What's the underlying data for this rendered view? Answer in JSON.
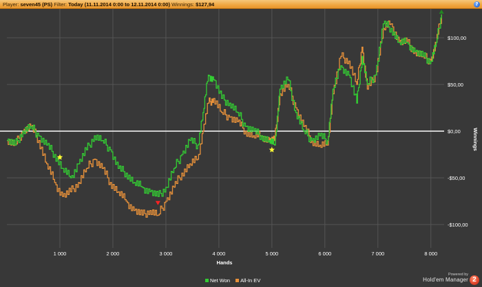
{
  "header": {
    "player_label": "Player:",
    "player_value": "seven45 (PS)",
    "filter_label": "Filter:",
    "filter_value": "Today (11.11.2014 0:00 to 12.11.2014 0:00)",
    "winnings_label": "Winnings:",
    "winnings_value": "$127,94",
    "help_label": "?"
  },
  "brand": {
    "powered_by": "Powered by",
    "name": "Hold'em Manager",
    "logo": "2"
  },
  "colors": {
    "net_won": "#33cc33",
    "all_in_ev": "#e8913a",
    "zero_line": "#ffffff",
    "grid": "#555555",
    "background": "#383838"
  },
  "chart_data": {
    "type": "line",
    "title": "",
    "xlabel": "Hands",
    "ylabel": "Winnings",
    "xlim": [
      0,
      8250
    ],
    "ylim": [
      -125,
      125
    ],
    "x_ticks": [
      1000,
      2000,
      3000,
      4000,
      5000,
      6000,
      7000,
      8000
    ],
    "x_tick_labels": [
      "1 000",
      "2 000",
      "3 000",
      "4 000",
      "5 000",
      "6 000",
      "7 000",
      "8 000"
    ],
    "y_ticks": [
      100,
      50,
      0,
      -50,
      -100
    ],
    "y_tick_labels": [
      "$100,00",
      "$50,00",
      "$0,00",
      "-$50,00",
      "-$100,00"
    ],
    "grid": true,
    "legend_position": "bottom-center",
    "series": [
      {
        "name": "Net Won",
        "x": [
          0,
          150,
          300,
          450,
          600,
          750,
          900,
          1050,
          1200,
          1350,
          1500,
          1650,
          1800,
          1950,
          2100,
          2250,
          2400,
          2550,
          2700,
          2850,
          3000,
          3150,
          3300,
          3450,
          3600,
          3700,
          3800,
          3900,
          4050,
          4200,
          4350,
          4500,
          4650,
          4800,
          4950,
          5050,
          5150,
          5300,
          5450,
          5600,
          5750,
          5900,
          6050,
          6150,
          6300,
          6450,
          6600,
          6700,
          6800,
          6950,
          7100,
          7250,
          7400,
          7550,
          7700,
          7850,
          8000,
          8100,
          8200
        ],
        "y": [
          -10,
          -15,
          0,
          5,
          -5,
          -15,
          -25,
          -40,
          -50,
          -35,
          -20,
          -5,
          -10,
          -20,
          -40,
          -45,
          -55,
          -60,
          -65,
          -70,
          -60,
          -40,
          -25,
          -10,
          -15,
          20,
          60,
          55,
          35,
          30,
          20,
          5,
          0,
          -5,
          -10,
          -15,
          45,
          55,
          20,
          0,
          -10,
          -5,
          -10,
          45,
          70,
          60,
          30,
          80,
          50,
          60,
          115,
          110,
          95,
          95,
          85,
          80,
          75,
          95,
          125
        ]
      },
      {
        "name": "All-In EV",
        "x": [
          0,
          150,
          300,
          450,
          600,
          750,
          900,
          1050,
          1200,
          1350,
          1500,
          1650,
          1800,
          1950,
          2100,
          2250,
          2400,
          2550,
          2700,
          2850,
          3000,
          3150,
          3300,
          3450,
          3600,
          3700,
          3800,
          3900,
          4050,
          4200,
          4350,
          4500,
          4650,
          4800,
          4950,
          5050,
          5150,
          5300,
          5450,
          5600,
          5750,
          5900,
          6050,
          6150,
          6300,
          6450,
          6600,
          6700,
          6800,
          6950,
          7100,
          7250,
          7400,
          7550,
          7700,
          7850,
          8000,
          8100,
          8200
        ],
        "y": [
          -10,
          -15,
          0,
          5,
          -10,
          -35,
          -55,
          -70,
          -65,
          -55,
          -40,
          -30,
          -40,
          -55,
          -65,
          -75,
          -85,
          -90,
          -85,
          -90,
          -75,
          -60,
          -45,
          -35,
          -30,
          0,
          30,
          35,
          20,
          15,
          10,
          0,
          -5,
          -5,
          -10,
          -10,
          40,
          50,
          25,
          5,
          -10,
          -15,
          -15,
          40,
          80,
          75,
          50,
          90,
          45,
          60,
          110,
          115,
          95,
          95,
          85,
          80,
          75,
          95,
          125
        ]
      }
    ],
    "markers": [
      {
        "shape": "star",
        "color": "#ffff33",
        "x": 1000,
        "y": -28
      },
      {
        "shape": "star",
        "color": "#ffff33",
        "x": 5000,
        "y": -20
      },
      {
        "shape": "triangle-down",
        "color": "#ff2222",
        "x": 2850,
        "y": -77
      },
      {
        "shape": "triangle-up",
        "color": "#228822",
        "x": 8200,
        "y": 128
      }
    ]
  }
}
